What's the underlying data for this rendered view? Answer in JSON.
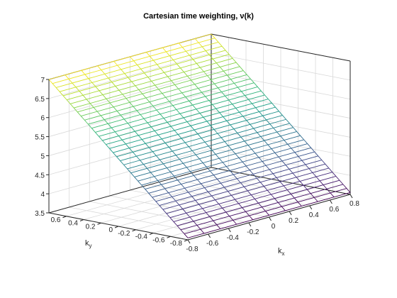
{
  "chart_data": {
    "type": "surface-mesh",
    "title": "Cartesian time weighting, ν(k)",
    "xlabel": "k",
    "xlabel_subscript": "x",
    "ylabel": "k",
    "ylabel_subscript": "y",
    "zlabel": "",
    "xlim": [
      -0.8,
      0.8
    ],
    "ylim": [
      -0.8,
      0.8
    ],
    "zlim": [
      3.5,
      7
    ],
    "x_ticks": [
      "-0.8",
      "-0.6",
      "-0.4",
      "-0.2",
      "0",
      "0.2",
      "0.4",
      "0.6",
      "0.8"
    ],
    "y_ticks": [
      "-0.8",
      "-0.6",
      "-0.4",
      "-0.2",
      "0",
      "0.2",
      "0.4",
      "0.6"
    ],
    "z_ticks": [
      "3.5",
      "4",
      "4.5",
      "5",
      "5.5",
      "6",
      "6.5",
      "7"
    ],
    "grid": true,
    "colormap": "viridis",
    "surface": {
      "kx_range": [
        -0.8,
        0.8
      ],
      "ky_range": [
        -0.8,
        0.8
      ],
      "z_at_ky_min": 3.55,
      "z_at_ky_max": 7.0,
      "z_varies_with": "ky",
      "mesh_lines_kx": 11,
      "mesh_lines_ky": 40
    }
  }
}
